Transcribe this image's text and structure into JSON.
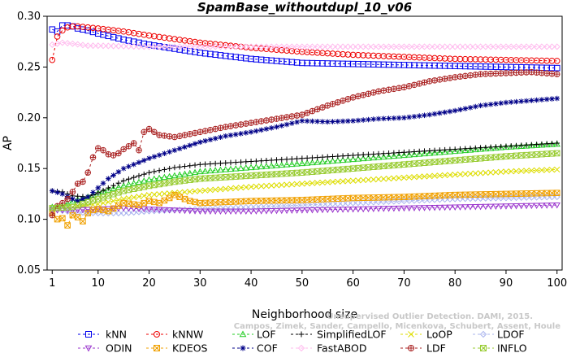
{
  "chart_data": {
    "type": "line",
    "title": "SpamBase_withoutdupl_10_v06",
    "xlabel": "Neighborhood size",
    "ylabel": "AP",
    "xlim": [
      1,
      100
    ],
    "ylim": [
      0.05,
      0.3
    ],
    "xticks": [
      "1",
      "10",
      "20",
      "30",
      "40",
      "50",
      "60",
      "70",
      "80",
      "90",
      "100"
    ],
    "yticks": [
      "0.05",
      "0.10",
      "0.15",
      "0.20",
      "0.25",
      "0.30"
    ],
    "watermark": [
      "Campos, Zimek, Sander, Campello, Micenkova, Schubert, Assent, Houle",
      "Unsupervised Outlier Detection. DAMI, 2015."
    ],
    "series": [
      {
        "name": "kNN",
        "color": "#0000ee",
        "marker": "square",
        "dash": "3,3",
        "points": [
          [
            1,
            0.287
          ],
          [
            2,
            0.285
          ],
          [
            3,
            0.291
          ],
          [
            4,
            0.291
          ],
          [
            5,
            0.29
          ],
          [
            6,
            0.288
          ],
          [
            8,
            0.286
          ],
          [
            10,
            0.283
          ],
          [
            15,
            0.277
          ],
          [
            20,
            0.272
          ],
          [
            30,
            0.264
          ],
          [
            40,
            0.258
          ],
          [
            50,
            0.254
          ],
          [
            60,
            0.253
          ],
          [
            70,
            0.252
          ],
          [
            80,
            0.251
          ],
          [
            90,
            0.25
          ],
          [
            100,
            0.249
          ]
        ]
      },
      {
        "name": "kNNW",
        "color": "#ee0000",
        "marker": "circle",
        "dash": "3,3",
        "points": [
          [
            1,
            0.257
          ],
          [
            2,
            0.28
          ],
          [
            3,
            0.286
          ],
          [
            4,
            0.289
          ],
          [
            5,
            0.29
          ],
          [
            6,
            0.29
          ],
          [
            8,
            0.289
          ],
          [
            10,
            0.288
          ],
          [
            15,
            0.285
          ],
          [
            20,
            0.281
          ],
          [
            30,
            0.274
          ],
          [
            40,
            0.269
          ],
          [
            50,
            0.265
          ],
          [
            60,
            0.262
          ],
          [
            70,
            0.26
          ],
          [
            80,
            0.258
          ],
          [
            90,
            0.257
          ],
          [
            100,
            0.256
          ]
        ]
      },
      {
        "name": "LOF",
        "color": "#22cc22",
        "marker": "triangle",
        "dash": "3,3",
        "points": [
          [
            1,
            0.112
          ],
          [
            3,
            0.113
          ],
          [
            5,
            0.118
          ],
          [
            8,
            0.122
          ],
          [
            10,
            0.126
          ],
          [
            15,
            0.133
          ],
          [
            20,
            0.139
          ],
          [
            25,
            0.143
          ],
          [
            30,
            0.147
          ],
          [
            40,
            0.151
          ],
          [
            50,
            0.155
          ],
          [
            60,
            0.159
          ],
          [
            70,
            0.163
          ],
          [
            80,
            0.167
          ],
          [
            90,
            0.171
          ],
          [
            100,
            0.174
          ]
        ]
      },
      {
        "name": "SimplifiedLOF",
        "color": "#000000",
        "marker": "plus",
        "dash": "3,3",
        "points": [
          [
            1,
            0.128
          ],
          [
            3,
            0.127
          ],
          [
            5,
            0.123
          ],
          [
            8,
            0.122
          ],
          [
            10,
            0.126
          ],
          [
            15,
            0.138
          ],
          [
            20,
            0.146
          ],
          [
            25,
            0.151
          ],
          [
            30,
            0.154
          ],
          [
            40,
            0.157
          ],
          [
            50,
            0.16
          ],
          [
            60,
            0.163
          ],
          [
            70,
            0.166
          ],
          [
            80,
            0.169
          ],
          [
            90,
            0.172
          ],
          [
            100,
            0.175
          ]
        ]
      },
      {
        "name": "LoOP",
        "color": "#dddd00",
        "marker": "x",
        "dash": "3,3",
        "points": [
          [
            1,
            0.111
          ],
          [
            5,
            0.112
          ],
          [
            10,
            0.115
          ],
          [
            15,
            0.12
          ],
          [
            20,
            0.124
          ],
          [
            30,
            0.128
          ],
          [
            40,
            0.132
          ],
          [
            50,
            0.135
          ],
          [
            60,
            0.138
          ],
          [
            70,
            0.141
          ],
          [
            80,
            0.144
          ],
          [
            90,
            0.147
          ],
          [
            100,
            0.149
          ]
        ]
      },
      {
        "name": "LDOF",
        "color": "#aab4ee",
        "marker": "diamond",
        "dash": "3,3",
        "points": [
          [
            1,
            0.11
          ],
          [
            5,
            0.107
          ],
          [
            10,
            0.106
          ],
          [
            15,
            0.106
          ],
          [
            20,
            0.108
          ],
          [
            30,
            0.11
          ],
          [
            40,
            0.112
          ],
          [
            50,
            0.114
          ],
          [
            60,
            0.116
          ],
          [
            70,
            0.118
          ],
          [
            80,
            0.12
          ],
          [
            90,
            0.121
          ],
          [
            100,
            0.122
          ]
        ]
      },
      {
        "name": "ODIN",
        "color": "#9933cc",
        "marker": "triangle-down",
        "dash": "3,3",
        "points": [
          [
            1,
            0.109
          ],
          [
            5,
            0.109
          ],
          [
            10,
            0.11
          ],
          [
            15,
            0.111
          ],
          [
            20,
            0.11
          ],
          [
            25,
            0.109
          ],
          [
            30,
            0.108
          ],
          [
            40,
            0.108
          ],
          [
            50,
            0.109
          ],
          [
            60,
            0.11
          ],
          [
            70,
            0.111
          ],
          [
            80,
            0.112
          ],
          [
            90,
            0.113
          ],
          [
            100,
            0.114
          ]
        ]
      },
      {
        "name": "KDEOS",
        "color": "#f0a000",
        "marker": "square-x",
        "dash": "3,3",
        "points": [
          [
            1,
            0.106
          ],
          [
            2,
            0.1
          ],
          [
            3,
            0.101
          ],
          [
            4,
            0.094
          ],
          [
            5,
            0.104
          ],
          [
            6,
            0.102
          ],
          [
            7,
            0.098
          ],
          [
            8,
            0.106
          ],
          [
            9,
            0.109
          ],
          [
            10,
            0.11
          ],
          [
            12,
            0.108
          ],
          [
            15,
            0.116
          ],
          [
            18,
            0.114
          ],
          [
            20,
            0.118
          ],
          [
            22,
            0.116
          ],
          [
            24,
            0.121
          ],
          [
            25,
            0.124
          ],
          [
            26,
            0.122
          ],
          [
            28,
            0.118
          ],
          [
            30,
            0.116
          ],
          [
            35,
            0.117
          ],
          [
            40,
            0.118
          ],
          [
            50,
            0.119
          ],
          [
            60,
            0.121
          ],
          [
            70,
            0.122
          ],
          [
            80,
            0.124
          ],
          [
            90,
            0.125
          ],
          [
            100,
            0.126
          ]
        ]
      },
      {
        "name": "COF",
        "color": "#000088",
        "marker": "star",
        "dash": "3,3",
        "points": [
          [
            1,
            0.128
          ],
          [
            3,
            0.125
          ],
          [
            5,
            0.12
          ],
          [
            6,
            0.118
          ],
          [
            8,
            0.122
          ],
          [
            10,
            0.131
          ],
          [
            12,
            0.14
          ],
          [
            15,
            0.15
          ],
          [
            20,
            0.16
          ],
          [
            25,
            0.168
          ],
          [
            30,
            0.176
          ],
          [
            35,
            0.182
          ],
          [
            40,
            0.186
          ],
          [
            45,
            0.191
          ],
          [
            50,
            0.197
          ],
          [
            55,
            0.196
          ],
          [
            60,
            0.197
          ],
          [
            65,
            0.199
          ],
          [
            70,
            0.2
          ],
          [
            75,
            0.203
          ],
          [
            80,
            0.207
          ],
          [
            85,
            0.212
          ],
          [
            90,
            0.215
          ],
          [
            95,
            0.217
          ],
          [
            100,
            0.219
          ]
        ]
      },
      {
        "name": "FastABOD",
        "color": "#ffbbee",
        "marker": "diamond",
        "dash": "3,3",
        "points": [
          [
            1,
            0.272
          ],
          [
            3,
            0.274
          ],
          [
            5,
            0.273
          ],
          [
            8,
            0.271
          ],
          [
            10,
            0.271
          ],
          [
            20,
            0.27
          ],
          [
            30,
            0.27
          ],
          [
            40,
            0.27
          ],
          [
            50,
            0.27
          ],
          [
            60,
            0.27
          ],
          [
            70,
            0.27
          ],
          [
            80,
            0.27
          ],
          [
            90,
            0.27
          ],
          [
            100,
            0.27
          ]
        ]
      },
      {
        "name": "LDF",
        "color": "#aa2222",
        "marker": "circle-plus",
        "dash": "3,3",
        "points": [
          [
            1,
            0.104
          ],
          [
            2,
            0.113
          ],
          [
            3,
            0.116
          ],
          [
            4,
            0.12
          ],
          [
            5,
            0.127
          ],
          [
            6,
            0.135
          ],
          [
            7,
            0.137
          ],
          [
            8,
            0.146
          ],
          [
            9,
            0.161
          ],
          [
            10,
            0.17
          ],
          [
            11,
            0.168
          ],
          [
            12,
            0.164
          ],
          [
            13,
            0.163
          ],
          [
            14,
            0.165
          ],
          [
            15,
            0.169
          ],
          [
            16,
            0.172
          ],
          [
            17,
            0.175
          ],
          [
            18,
            0.168
          ],
          [
            19,
            0.186
          ],
          [
            20,
            0.189
          ],
          [
            22,
            0.183
          ],
          [
            25,
            0.181
          ],
          [
            30,
            0.186
          ],
          [
            35,
            0.191
          ],
          [
            40,
            0.195
          ],
          [
            45,
            0.199
          ],
          [
            50,
            0.203
          ],
          [
            55,
            0.212
          ],
          [
            60,
            0.22
          ],
          [
            65,
            0.226
          ],
          [
            70,
            0.23
          ],
          [
            75,
            0.236
          ],
          [
            80,
            0.24
          ],
          [
            85,
            0.243
          ],
          [
            90,
            0.244
          ],
          [
            95,
            0.245
          ],
          [
            100,
            0.243
          ]
        ]
      },
      {
        "name": "INFLO",
        "color": "#99cc33",
        "marker": "square-x",
        "dash": "3,3",
        "points": [
          [
            1,
            0.111
          ],
          [
            5,
            0.112
          ],
          [
            10,
            0.12
          ],
          [
            15,
            0.128
          ],
          [
            20,
            0.133
          ],
          [
            25,
            0.137
          ],
          [
            30,
            0.14
          ],
          [
            40,
            0.143
          ],
          [
            50,
            0.146
          ],
          [
            60,
            0.15
          ],
          [
            70,
            0.154
          ],
          [
            80,
            0.158
          ],
          [
            90,
            0.162
          ],
          [
            100,
            0.165
          ]
        ]
      }
    ]
  }
}
